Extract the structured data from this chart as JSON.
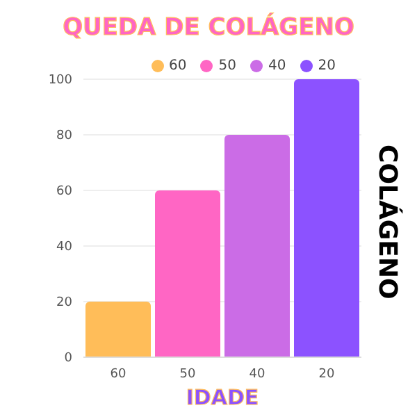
{
  "chart_data": {
    "type": "bar",
    "title": "QUEDA DE COLÁGENO",
    "xlabel": "IDADE",
    "ylabel": "COLÁGENO",
    "categories": [
      "60",
      "50",
      "40",
      "20"
    ],
    "series": [
      {
        "name": "60",
        "color": "#ffbd59",
        "values": [
          20,
          null,
          null,
          null
        ]
      },
      {
        "name": "50",
        "color": "#ff66c4",
        "values": [
          null,
          60,
          null,
          null
        ]
      },
      {
        "name": "40",
        "color": "#cb6ce6",
        "values": [
          null,
          null,
          80,
          null
        ]
      },
      {
        "name": "20",
        "color": "#8c52ff",
        "values": [
          null,
          null,
          null,
          100
        ]
      }
    ],
    "ylim": [
      0,
      100
    ],
    "yticks": [
      0,
      20,
      40,
      60,
      80,
      100
    ],
    "grid": "y",
    "legend": "top"
  }
}
